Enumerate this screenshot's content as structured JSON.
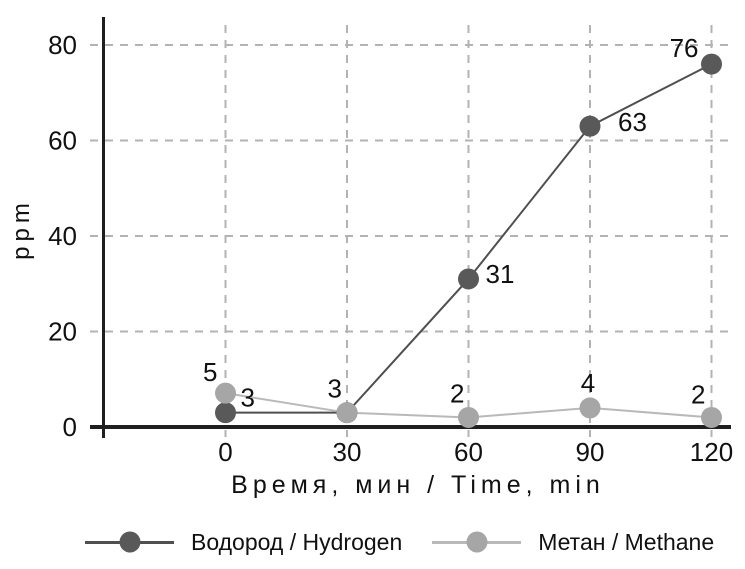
{
  "chart_data": {
    "type": "line",
    "title": "",
    "xlabel": "Время, мин / Time, min",
    "ylabel": "ppm",
    "x": [
      0,
      30,
      60,
      90,
      120
    ],
    "xticks": [
      0,
      30,
      60,
      90,
      120
    ],
    "yticks": [
      0,
      20,
      40,
      60,
      80
    ],
    "xlim": [
      0,
      120
    ],
    "ylim": [
      0,
      80
    ],
    "grid": "dashed",
    "legend_position": "bottom",
    "axis_color": "#1f1f1f",
    "grid_color": "#b3b3b3",
    "text_color": "#111111",
    "series": [
      {
        "name": "Водород / Hydrogen",
        "values": [
          3,
          3,
          31,
          63,
          76
        ],
        "point_labels": [
          "3",
          "",
          "31",
          "63",
          "76"
        ],
        "color": "#595959",
        "line_color": "#4f4f4f"
      },
      {
        "name": "Метан / Methane",
        "values": [
          5,
          3,
          2,
          4,
          2
        ],
        "point_labels": [
          "5",
          "3",
          "2",
          "4",
          "2"
        ],
        "color": "#a6a6a6",
        "line_color": "#b9b9b9"
      }
    ]
  }
}
